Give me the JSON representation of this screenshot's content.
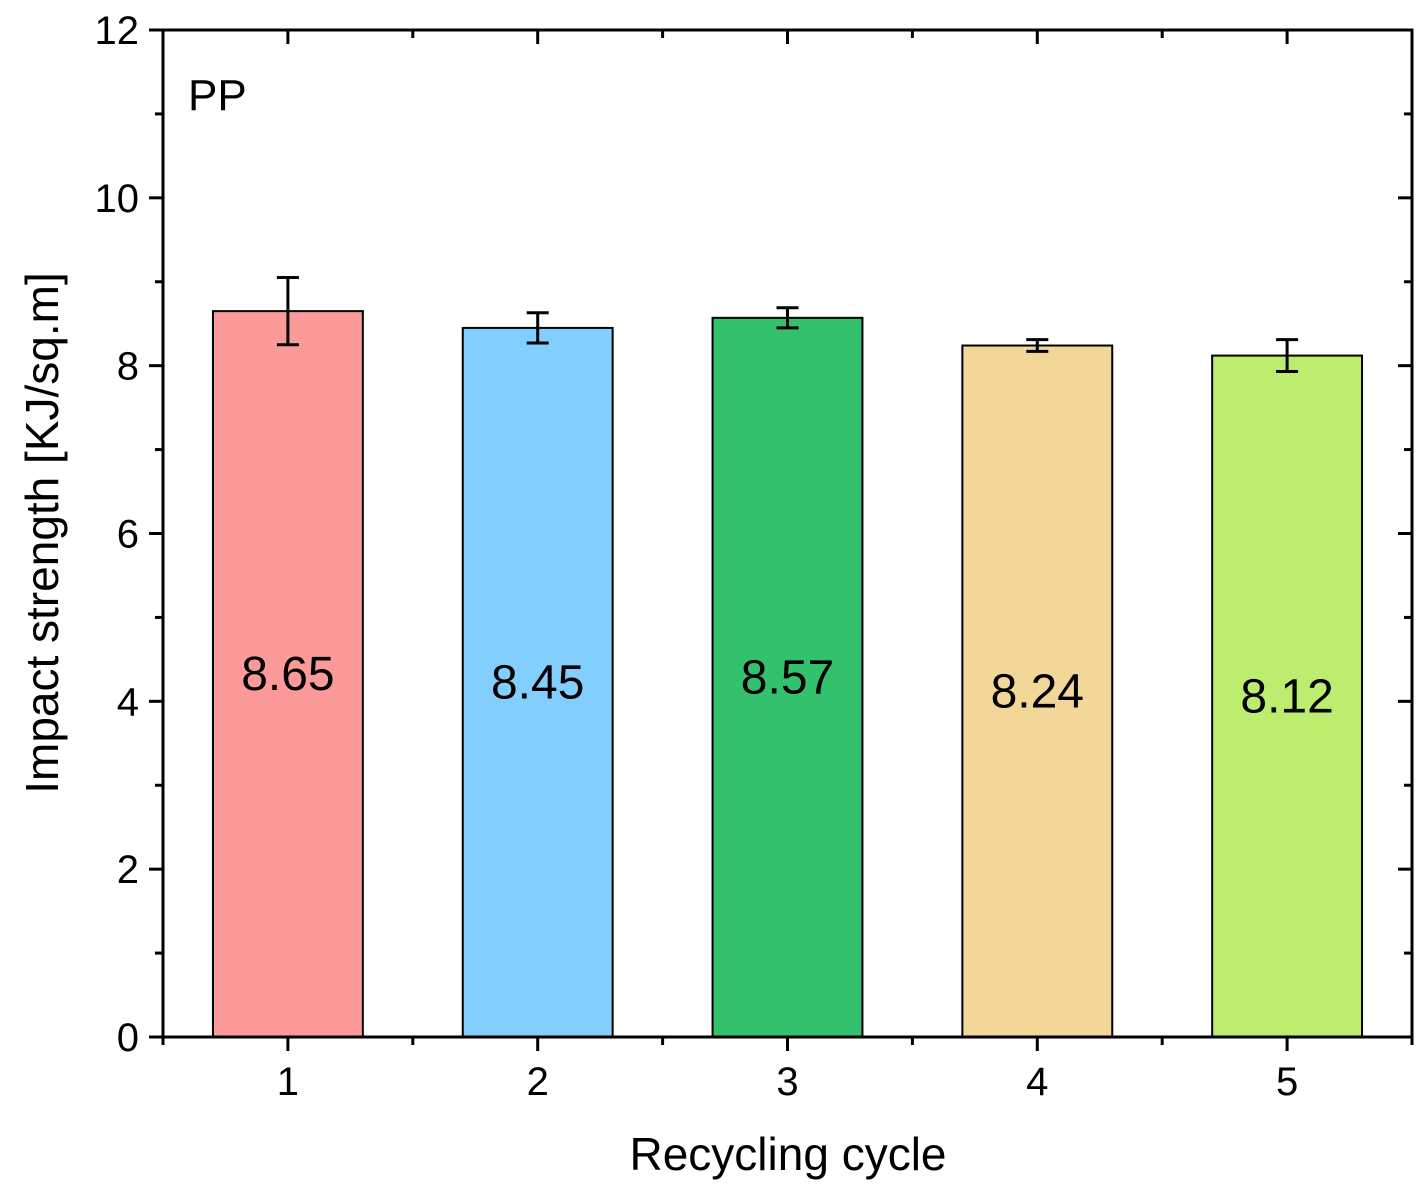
{
  "chart_data": {
    "type": "bar",
    "panel_label": "PP",
    "xlabel": "Recycling cycle",
    "ylabel": "Impact strength [KJ/sq.m]",
    "ylim": [
      0,
      12
    ],
    "yticks": [
      "0",
      "2",
      "4",
      "6",
      "8",
      "10",
      "12"
    ],
    "categories": [
      "1",
      "2",
      "3",
      "4",
      "5"
    ],
    "values": [
      8.65,
      8.45,
      8.57,
      8.24,
      8.12
    ],
    "value_labels": [
      "8.65",
      "8.45",
      "8.57",
      "8.24",
      "8.12"
    ],
    "errors": [
      0.4,
      0.18,
      0.12,
      0.07,
      0.19
    ],
    "colors": [
      "#fc9999",
      "#82cfff",
      "#33c16e",
      "#f2d798",
      "#bced6f"
    ],
    "grid": false,
    "legend": "none"
  }
}
